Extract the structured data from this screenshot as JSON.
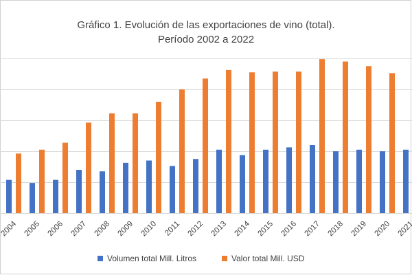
{
  "chart_data": {
    "type": "bar",
    "title_line1": "Gráfico 1. Evolución de las exportaciones de vino (total).",
    "title_line2": "Período 2002 a 2022",
    "categories": [
      "2004",
      "2005",
      "2006",
      "2007",
      "2008",
      "2009",
      "2010",
      "2011",
      "2012",
      "2013",
      "2014",
      "2015",
      "2016",
      "2017",
      "2018",
      "2019",
      "2020",
      "2021"
    ],
    "series": [
      {
        "name": "Volumen total Mill. Litros",
        "color": "#4472C4",
        "values": [
          430,
          390,
          430,
          560,
          540,
          650,
          680,
          610,
          700,
          820,
          750,
          820,
          850,
          880,
          800,
          820,
          800,
          820
        ]
      },
      {
        "name": "Valor total Mill. USD",
        "color": "#ED7D31",
        "values": [
          770,
          820,
          910,
          1170,
          1290,
          1290,
          1440,
          1600,
          1740,
          1850,
          1820,
          1830,
          1830,
          1990,
          1960,
          1900,
          1810,
          null
        ]
      }
    ],
    "xlabel": "",
    "ylabel": "",
    "ylim": [
      0,
      2000
    ],
    "grid": true,
    "legend_position": "bottom"
  }
}
